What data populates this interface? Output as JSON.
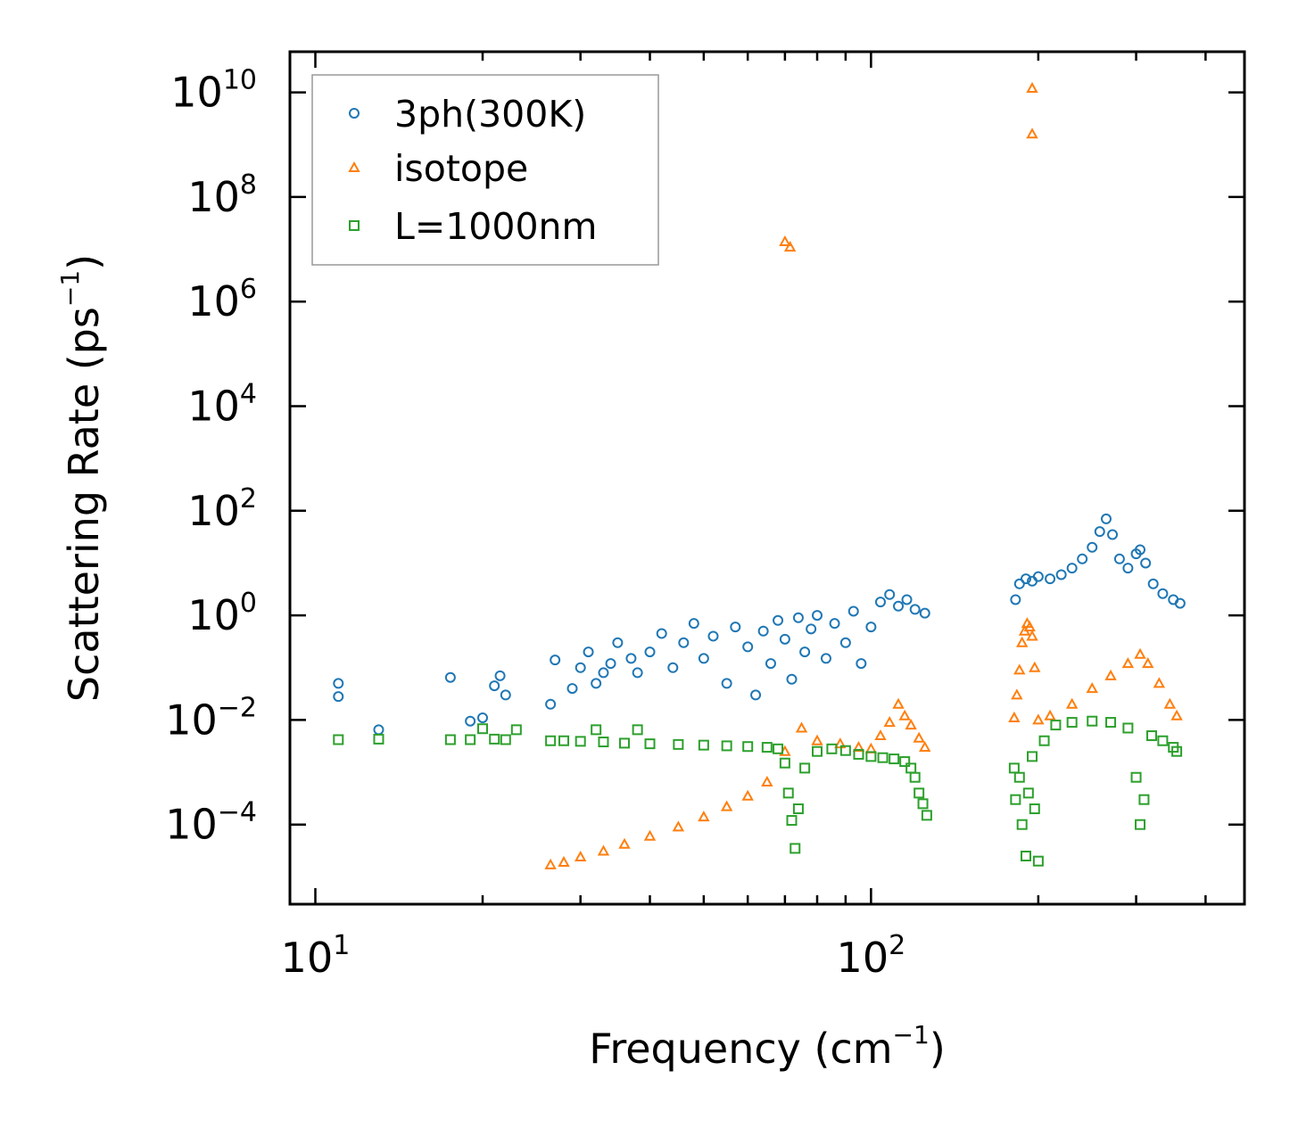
{
  "chart_data": {
    "type": "scatter",
    "xscale": "log",
    "yscale": "log",
    "xlim": [
      9,
      470
    ],
    "ylim": [
      3e-06,
      60000000000.0
    ],
    "xlabel": {
      "text": "Frequency (cm",
      "sup": "−1",
      "suffix": ")"
    },
    "ylabel": {
      "text": "Scattering Rate (ps",
      "sup": "−1",
      "suffix": ")"
    },
    "x_ticks": [
      {
        "value": 10,
        "base": "10",
        "exp": "1"
      },
      {
        "value": 100,
        "base": "10",
        "exp": "2"
      }
    ],
    "y_ticks": [
      {
        "value": 0.0001,
        "base": "10",
        "exp": "−4"
      },
      {
        "value": 0.01,
        "base": "10",
        "exp": "−2"
      },
      {
        "value": 1,
        "base": "10",
        "exp": "0"
      },
      {
        "value": 100,
        "base": "10",
        "exp": "2"
      },
      {
        "value": 10000,
        "base": "10",
        "exp": "4"
      },
      {
        "value": 1000000,
        "base": "10",
        "exp": "6"
      },
      {
        "value": 100000000,
        "base": "10",
        "exp": "8"
      },
      {
        "value": 10000000000,
        "base": "10",
        "exp": "10"
      }
    ],
    "legend_position": "top-left",
    "series": [
      {
        "name": "3ph(300K)",
        "marker": "circle",
        "color": "#1f77b4",
        "points": [
          [
            11,
            0.05
          ],
          [
            11,
            0.028
          ],
          [
            13,
            0.0065
          ],
          [
            17.5,
            0.065
          ],
          [
            19,
            0.0095
          ],
          [
            20,
            0.011
          ],
          [
            21,
            0.045
          ],
          [
            21.5,
            0.07
          ],
          [
            22,
            0.03
          ],
          [
            26.5,
            0.02
          ],
          [
            27,
            0.14
          ],
          [
            29,
            0.04
          ],
          [
            30,
            0.1
          ],
          [
            31,
            0.2
          ],
          [
            32,
            0.05
          ],
          [
            33,
            0.08
          ],
          [
            34,
            0.12
          ],
          [
            35,
            0.3
          ],
          [
            37,
            0.15
          ],
          [
            38,
            0.08
          ],
          [
            40,
            0.2
          ],
          [
            42,
            0.45
          ],
          [
            44,
            0.1
          ],
          [
            46,
            0.3
          ],
          [
            48,
            0.7
          ],
          [
            50,
            0.15
          ],
          [
            52,
            0.4
          ],
          [
            55,
            0.05
          ],
          [
            57,
            0.6
          ],
          [
            60,
            0.25
          ],
          [
            62,
            0.03
          ],
          [
            64,
            0.5
          ],
          [
            66,
            0.12
          ],
          [
            68,
            0.8
          ],
          [
            70,
            0.35
          ],
          [
            72,
            0.06
          ],
          [
            74,
            0.9
          ],
          [
            76,
            0.2
          ],
          [
            78,
            0.55
          ],
          [
            80,
            1.0
          ],
          [
            83,
            0.15
          ],
          [
            86,
            0.7
          ],
          [
            90,
            0.3
          ],
          [
            93,
            1.2
          ],
          [
            96,
            0.12
          ],
          [
            100,
            0.6
          ],
          [
            104,
            1.8
          ],
          [
            108,
            2.5
          ],
          [
            112,
            1.5
          ],
          [
            116,
            2.0
          ],
          [
            120,
            1.3
          ],
          [
            125,
            1.1
          ],
          [
            182,
            2.0
          ],
          [
            185,
            4.0
          ],
          [
            190,
            5.0
          ],
          [
            195,
            4.5
          ],
          [
            200,
            5.5
          ],
          [
            210,
            5.0
          ],
          [
            220,
            6.0
          ],
          [
            230,
            8.0
          ],
          [
            240,
            12
          ],
          [
            250,
            20
          ],
          [
            258,
            40
          ],
          [
            265,
            70
          ],
          [
            272,
            35
          ],
          [
            280,
            12
          ],
          [
            290,
            8
          ],
          [
            300,
            15
          ],
          [
            305,
            18
          ],
          [
            312,
            10
          ],
          [
            322,
            4
          ],
          [
            335,
            2.6
          ],
          [
            350,
            2.0
          ],
          [
            360,
            1.7
          ]
        ]
      },
      {
        "name": "isotope",
        "marker": "triangle",
        "color": "#ff7f0e",
        "points": [
          [
            26.5,
            1.7e-05
          ],
          [
            28,
            1.9e-05
          ],
          [
            30,
            2.4e-05
          ],
          [
            33,
            3.1e-05
          ],
          [
            36,
            4.2e-05
          ],
          [
            40,
            6e-05
          ],
          [
            45,
            9e-05
          ],
          [
            50,
            0.00014
          ],
          [
            55,
            0.00022
          ],
          [
            60,
            0.00035
          ],
          [
            65,
            0.00065
          ],
          [
            70,
            0.0025
          ],
          [
            75,
            0.007
          ],
          [
            80,
            0.004
          ],
          [
            88,
            0.0035
          ],
          [
            95,
            0.003
          ],
          [
            100,
            0.0028
          ],
          [
            104,
            0.005
          ],
          [
            108,
            0.009
          ],
          [
            112,
            0.02
          ],
          [
            115,
            0.012
          ],
          [
            118,
            0.008
          ],
          [
            122,
            0.0045
          ],
          [
            125,
            0.003
          ],
          [
            70,
            14000000
          ],
          [
            71.5,
            11000000
          ],
          [
            181,
            0.011
          ],
          [
            183,
            0.03
          ],
          [
            185,
            0.09
          ],
          [
            187,
            0.3
          ],
          [
            189,
            0.5
          ],
          [
            191,
            0.7
          ],
          [
            193,
            0.6
          ],
          [
            195,
            0.4
          ],
          [
            197,
            0.1
          ],
          [
            200,
            0.01
          ],
          [
            210,
            0.012
          ],
          [
            230,
            0.02
          ],
          [
            250,
            0.04
          ],
          [
            270,
            0.07
          ],
          [
            290,
            0.12
          ],
          [
            305,
            0.18
          ],
          [
            315,
            0.12
          ],
          [
            330,
            0.05
          ],
          [
            345,
            0.02
          ],
          [
            355,
            0.012
          ],
          [
            195,
            12000000000
          ],
          [
            195,
            1600000000
          ]
        ]
      },
      {
        "name": "L=1000nm",
        "marker": "square",
        "color": "#2ca02c",
        "points": [
          [
            11,
            0.0042
          ],
          [
            13,
            0.0043
          ],
          [
            17.5,
            0.0042
          ],
          [
            19,
            0.0042
          ],
          [
            20,
            0.0068
          ],
          [
            21,
            0.0043
          ],
          [
            22,
            0.0042
          ],
          [
            23,
            0.0065
          ],
          [
            26.5,
            0.004
          ],
          [
            28,
            0.004
          ],
          [
            30,
            0.0039
          ],
          [
            32,
            0.0065
          ],
          [
            33,
            0.0038
          ],
          [
            36,
            0.0036
          ],
          [
            38,
            0.0065
          ],
          [
            40,
            0.0035
          ],
          [
            45,
            0.0034
          ],
          [
            50,
            0.0033
          ],
          [
            55,
            0.0032
          ],
          [
            60,
            0.0031
          ],
          [
            65,
            0.003
          ],
          [
            68,
            0.0028
          ],
          [
            70,
            0.0015
          ],
          [
            71,
            0.0004
          ],
          [
            72,
            0.00012
          ],
          [
            73,
            3.5e-05
          ],
          [
            74,
            0.0002
          ],
          [
            76,
            0.0012
          ],
          [
            80,
            0.0025
          ],
          [
            85,
            0.0028
          ],
          [
            90,
            0.0026
          ],
          [
            95,
            0.0022
          ],
          [
            100,
            0.002
          ],
          [
            105,
            0.0019
          ],
          [
            110,
            0.0018
          ],
          [
            115,
            0.0016
          ],
          [
            118,
            0.0012
          ],
          [
            120,
            0.0008
          ],
          [
            122,
            0.0004
          ],
          [
            124,
            0.00025
          ],
          [
            126,
            0.00015
          ],
          [
            181,
            0.0012
          ],
          [
            182,
            0.0003
          ],
          [
            185,
            0.0008
          ],
          [
            187,
            0.0001
          ],
          [
            190,
            2.5e-05
          ],
          [
            192,
            0.0004
          ],
          [
            195,
            0.002
          ],
          [
            197,
            0.0002
          ],
          [
            200,
            2e-05
          ],
          [
            205,
            0.004
          ],
          [
            215,
            0.008
          ],
          [
            230,
            0.009
          ],
          [
            250,
            0.0095
          ],
          [
            270,
            0.009
          ],
          [
            290,
            0.007
          ],
          [
            300,
            0.0008
          ],
          [
            305,
            0.0001
          ],
          [
            310,
            0.0003
          ],
          [
            320,
            0.005
          ],
          [
            335,
            0.004
          ],
          [
            350,
            0.003
          ],
          [
            355,
            0.0025
          ]
        ]
      }
    ]
  }
}
